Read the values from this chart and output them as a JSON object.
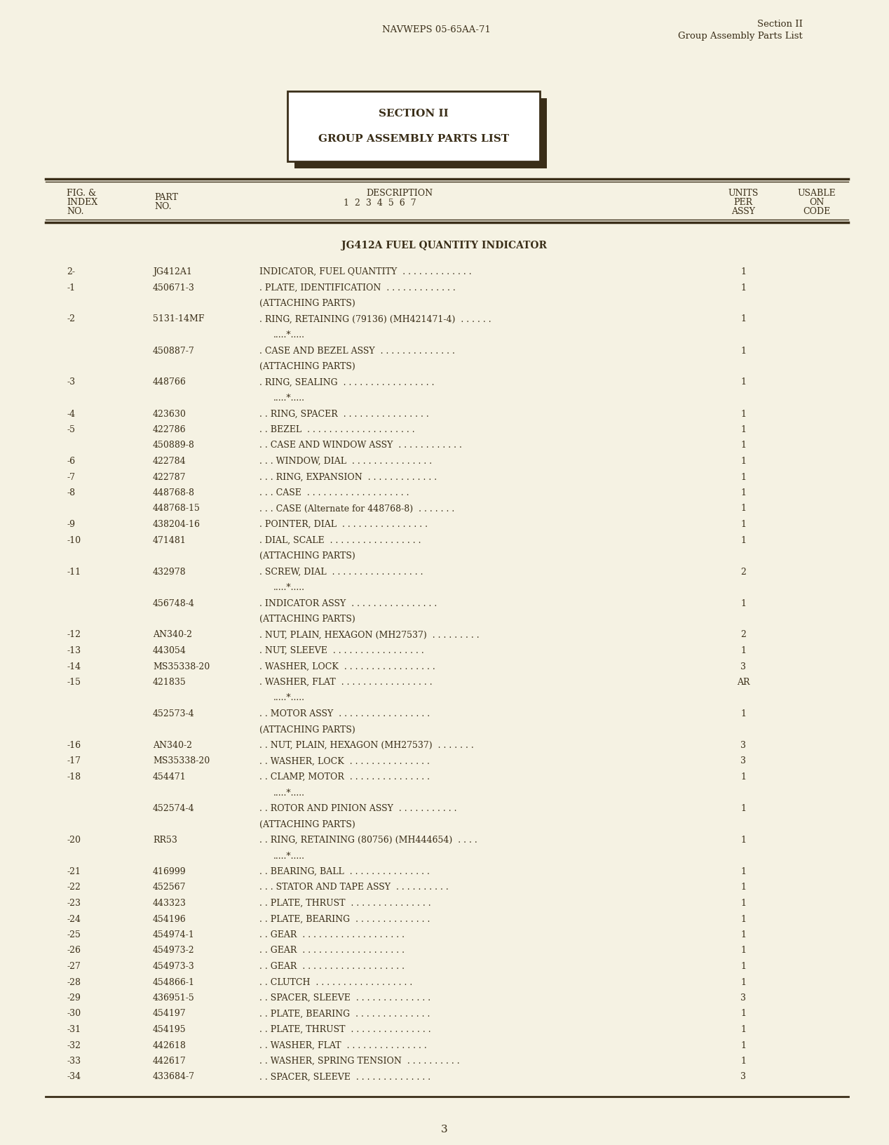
{
  "bg_color": "#f5f2e3",
  "text_color": "#3a2e18",
  "header_left": "NAVWEPS 05-65AA-71",
  "header_right_line1": "Section II",
  "header_right_line2": "Group Assembly Parts List",
  "section_box_line1": "SECTION II",
  "section_box_line2": "GROUP ASSEMBLY PARTS LIST",
  "indicator_title": "JG412A FUEL QUANTITY INDICATOR",
  "rows": [
    {
      "fig": "2-",
      "part": "JG412A1",
      "desc": "INDICATOR, FUEL QUANTITY  . . . . . . . . . . . . .",
      "units": "1"
    },
    {
      "fig": "-1",
      "part": "450671-3",
      "desc": ". PLATE, IDENTIFICATION  . . . . . . . . . . . . .",
      "units": "1"
    },
    {
      "fig": "",
      "part": "",
      "desc": "(ATTACHING PARTS)",
      "units": ""
    },
    {
      "fig": "-2",
      "part": "5131-14MF",
      "desc": ". RING, RETAINING (79136) (MH421471-4)  . . . . . .",
      "units": "1"
    },
    {
      "fig": "",
      "part": "",
      "desc": ".....*.....",
      "units": ""
    },
    {
      "fig": "",
      "part": "450887-7",
      "desc": ". CASE AND BEZEL ASSY  . . . . . . . . . . . . . .",
      "units": "1"
    },
    {
      "fig": "",
      "part": "",
      "desc": "(ATTACHING PARTS)",
      "units": ""
    },
    {
      "fig": "-3",
      "part": "448766",
      "desc": ". RING, SEALING  . . . . . . . . . . . . . . . . .",
      "units": "1"
    },
    {
      "fig": "",
      "part": "",
      "desc": ".....*.....",
      "units": ""
    },
    {
      "fig": "-4",
      "part": "423630",
      "desc": ". . RING, SPACER  . . . . . . . . . . . . . . . .",
      "units": "1"
    },
    {
      "fig": "-5",
      "part": "422786",
      "desc": ". . BEZEL  . . . . . . . . . . . . . . . . . . . .",
      "units": "1"
    },
    {
      "fig": "",
      "part": "450889-8",
      "desc": ". . CASE AND WINDOW ASSY  . . . . . . . . . . . .",
      "units": "1"
    },
    {
      "fig": "-6",
      "part": "422784",
      "desc": ". . . WINDOW, DIAL  . . . . . . . . . . . . . . .",
      "units": "1"
    },
    {
      "fig": "-7",
      "part": "422787",
      "desc": ". . . RING, EXPANSION  . . . . . . . . . . . . .",
      "units": "1"
    },
    {
      "fig": "-8",
      "part": "448768-8",
      "desc": ". . . CASE  . . . . . . . . . . . . . . . . . . .",
      "units": "1"
    },
    {
      "fig": "",
      "part": "448768-15",
      "desc": ". . . CASE (Alternate for 448768-8)  . . . . . . .",
      "units": "1"
    },
    {
      "fig": "-9",
      "part": "438204-16",
      "desc": ". POINTER, DIAL  . . . . . . . . . . . . . . . .",
      "units": "1"
    },
    {
      "fig": "-10",
      "part": "471481",
      "desc": ". DIAL, SCALE  . . . . . . . . . . . . . . . . .",
      "units": "1"
    },
    {
      "fig": "",
      "part": "",
      "desc": "(ATTACHING PARTS)",
      "units": ""
    },
    {
      "fig": "-11",
      "part": "432978",
      "desc": ". SCREW, DIAL  . . . . . . . . . . . . . . . . .",
      "units": "2"
    },
    {
      "fig": "",
      "part": "",
      "desc": ".....*.....",
      "units": ""
    },
    {
      "fig": "",
      "part": "456748-4",
      "desc": ". INDICATOR ASSY  . . . . . . . . . . . . . . . .",
      "units": "1"
    },
    {
      "fig": "",
      "part": "",
      "desc": "(ATTACHING PARTS)",
      "units": ""
    },
    {
      "fig": "-12",
      "part": "AN340-2",
      "desc": ". NUT, PLAIN, HEXAGON (MH27537)  . . . . . . . . .",
      "units": "2"
    },
    {
      "fig": "-13",
      "part": "443054",
      "desc": ". NUT, SLEEVE  . . . . . . . . . . . . . . . . .",
      "units": "1"
    },
    {
      "fig": "-14",
      "part": "MS35338-20",
      "desc": ". WASHER, LOCK  . . . . . . . . . . . . . . . . .",
      "units": "3"
    },
    {
      "fig": "-15",
      "part": "421835",
      "desc": ". WASHER, FLAT  . . . . . . . . . . . . . . . . .",
      "units": "AR"
    },
    {
      "fig": "",
      "part": "",
      "desc": ".....*.....",
      "units": ""
    },
    {
      "fig": "",
      "part": "452573-4",
      "desc": ". . MOTOR ASSY  . . . . . . . . . . . . . . . . .",
      "units": "1"
    },
    {
      "fig": "",
      "part": "",
      "desc": "(ATTACHING PARTS)",
      "units": ""
    },
    {
      "fig": "-16",
      "part": "AN340-2",
      "desc": ". . NUT, PLAIN, HEXAGON (MH27537)  . . . . . . .",
      "units": "3"
    },
    {
      "fig": "-17",
      "part": "MS35338-20",
      "desc": ". . WASHER, LOCK  . . . . . . . . . . . . . . .",
      "units": "3"
    },
    {
      "fig": "-18",
      "part": "454471",
      "desc": ". . CLAMP, MOTOR  . . . . . . . . . . . . . . .",
      "units": "1"
    },
    {
      "fig": "",
      "part": "",
      "desc": ".....*.....",
      "units": ""
    },
    {
      "fig": "",
      "part": "452574-4",
      "desc": ". . ROTOR AND PINION ASSY  . . . . . . . . . . .",
      "units": "1"
    },
    {
      "fig": "",
      "part": "",
      "desc": "(ATTACHING PARTS)",
      "units": ""
    },
    {
      "fig": "-20",
      "part": "RR53",
      "desc": ". . RING, RETAINING (80756) (MH444654)  . . . .",
      "units": "1"
    },
    {
      "fig": "",
      "part": "",
      "desc": ".....*.....",
      "units": ""
    },
    {
      "fig": "-21",
      "part": "416999",
      "desc": ". . BEARING, BALL  . . . . . . . . . . . . . . .",
      "units": "1"
    },
    {
      "fig": "-22",
      "part": "452567",
      "desc": ". . . STATOR AND TAPE ASSY  . . . . . . . . . .",
      "units": "1"
    },
    {
      "fig": "-23",
      "part": "443323",
      "desc": ". . PLATE, THRUST  . . . . . . . . . . . . . . .",
      "units": "1"
    },
    {
      "fig": "-24",
      "part": "454196",
      "desc": ". . PLATE, BEARING  . . . . . . . . . . . . . .",
      "units": "1"
    },
    {
      "fig": "-25",
      "part": "454974-1",
      "desc": ". . GEAR  . . . . . . . . . . . . . . . . . . .",
      "units": "1"
    },
    {
      "fig": "-26",
      "part": "454973-2",
      "desc": ". . GEAR  . . . . . . . . . . . . . . . . . . .",
      "units": "1"
    },
    {
      "fig": "-27",
      "part": "454973-3",
      "desc": ". . GEAR  . . . . . . . . . . . . . . . . . . .",
      "units": "1"
    },
    {
      "fig": "-28",
      "part": "454866-1",
      "desc": ". . CLUTCH  . . . . . . . . . . . . . . . . . .",
      "units": "1"
    },
    {
      "fig": "-29",
      "part": "436951-5",
      "desc": ". . SPACER, SLEEVE  . . . . . . . . . . . . . .",
      "units": "3"
    },
    {
      "fig": "-30",
      "part": "454197",
      "desc": ". . PLATE, BEARING  . . . . . . . . . . . . . .",
      "units": "1"
    },
    {
      "fig": "-31",
      "part": "454195",
      "desc": ". . PLATE, THRUST  . . . . . . . . . . . . . . .",
      "units": "1"
    },
    {
      "fig": "-32",
      "part": "442618",
      "desc": ". . WASHER, FLAT  . . . . . . . . . . . . . . .",
      "units": "1"
    },
    {
      "fig": "-33",
      "part": "442617",
      "desc": ". . WASHER, SPRING TENSION  . . . . . . . . . .",
      "units": "1"
    },
    {
      "fig": "-34",
      "part": "433684-7",
      "desc": ". . SPACER, SLEEVE  . . . . . . . . . . . . . .",
      "units": "3"
    }
  ],
  "page_number": "3"
}
